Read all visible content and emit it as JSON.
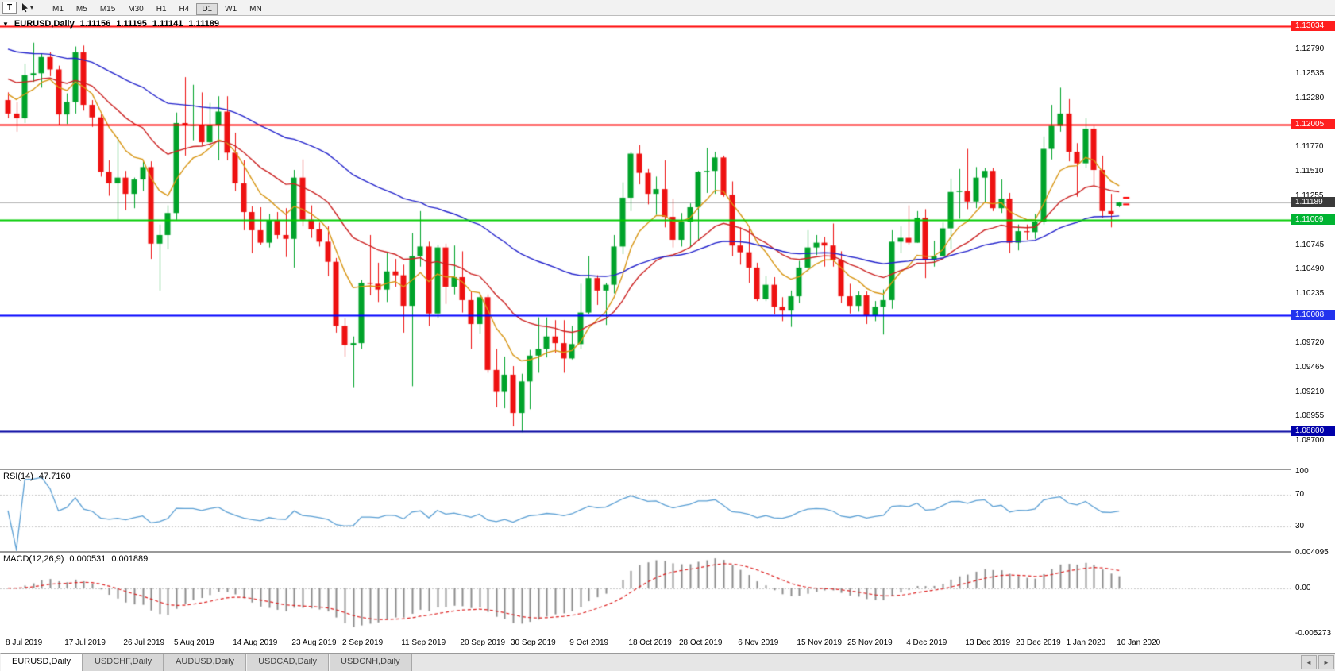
{
  "toolbar": {
    "tool_button": "T",
    "dropdown_icon": "▾",
    "timeframes": [
      "M1",
      "M5",
      "M15",
      "M30",
      "H1",
      "H4",
      "D1",
      "W1",
      "MN"
    ],
    "active_timeframe": "D1"
  },
  "chart_header": {
    "collapse_icon": "▼",
    "symbol": "EURUSD,Daily",
    "open": "1.11156",
    "high": "1.11195",
    "low": "1.11141",
    "close": "1.11189"
  },
  "rsi_panel": {
    "label": "RSI(14)",
    "value": "47.7160"
  },
  "macd_panel": {
    "label": "MACD(12,26,9)",
    "value_main": "0.000531",
    "value_signal": "0.001889"
  },
  "tabs": {
    "items": [
      {
        "label": "EURUSD,Daily",
        "active": true
      },
      {
        "label": "USDCHF,Daily",
        "active": false
      },
      {
        "label": "AUDUSD,Daily",
        "active": false
      },
      {
        "label": "USDCAD,Daily",
        "active": false
      },
      {
        "label": "USDCNH,Daily",
        "active": false
      }
    ],
    "scroll_left": "◄",
    "scroll_right": "►"
  },
  "chart_data": {
    "type": "candlestick",
    "symbol": "EURUSD",
    "timeframe": "Daily",
    "ohlc_current": {
      "open": 1.11156,
      "high": 1.11195,
      "low": 1.11141,
      "close": 1.11189
    },
    "ylim": [
      1.0841,
      1.1314
    ],
    "candle_colors": {
      "up": "#00a32a",
      "down": "#ee1111",
      "bg": "#ffffff"
    },
    "y_ticks": [
      "1.12790",
      "1.12535",
      "1.12280",
      "1.11770",
      "1.11510",
      "1.11255",
      "1.10745",
      "1.10490",
      "1.10235",
      "1.09720",
      "1.09465",
      "1.09210",
      "1.08955",
      "1.08700"
    ],
    "price_badges": [
      {
        "text": "1.13034",
        "price": 1.13034,
        "bg": "#ff1e1e"
      },
      {
        "text": "1.12005",
        "price": 1.12005,
        "bg": "#ff1e1e"
      },
      {
        "text": "1.11189",
        "price": 1.11189,
        "bg": "#3a3a3a"
      },
      {
        "text": "1.11009",
        "price": 1.11009,
        "bg": "#00b432"
      },
      {
        "text": "1.10008",
        "price": 1.10008,
        "bg": "#2233ee"
      },
      {
        "text": "1.08800",
        "price": 1.088,
        "bg": "#0000aa"
      }
    ],
    "hlines": [
      {
        "price": 1.13034,
        "color": "#ff0000"
      },
      {
        "price": 1.12005,
        "color": "#ff0000"
      },
      {
        "price": 1.11009,
        "color": "#00cc00"
      },
      {
        "price": 1.10008,
        "color": "#0000ff"
      },
      {
        "price": 1.088,
        "color": "#0000a0"
      }
    ],
    "moving_averages": [
      {
        "period": 8,
        "color": "#d89614",
        "start": 1.1238
      },
      {
        "period": 20,
        "color": "#cc2222",
        "start": 1.1252
      },
      {
        "period": 50,
        "color": "#2222cc",
        "start": 1.1282
      }
    ],
    "markers": [
      {
        "price": 1.1124,
        "color": "#ff0000"
      },
      {
        "price": 1.1117,
        "color": "#ff0000"
      }
    ],
    "date_labels": [
      {
        "label": "8 Jul 2019",
        "bar": 0
      },
      {
        "label": "17 Jul 2019",
        "bar": 7
      },
      {
        "label": "26 Jul 2019",
        "bar": 14
      },
      {
        "label": "5 Aug 2019",
        "bar": 20
      },
      {
        "label": "14 Aug 2019",
        "bar": 27
      },
      {
        "label": "23 Aug 2019",
        "bar": 34
      },
      {
        "label": "2 Sep 2019",
        "bar": 40
      },
      {
        "label": "11 Sep 2019",
        "bar": 47
      },
      {
        "label": "20 Sep 2019",
        "bar": 54
      },
      {
        "label": "30 Sep 2019",
        "bar": 60
      },
      {
        "label": "9 Oct 2019",
        "bar": 67
      },
      {
        "label": "18 Oct 2019",
        "bar": 74
      },
      {
        "label": "28 Oct 2019",
        "bar": 80
      },
      {
        "label": "6 Nov 2019",
        "bar": 87
      },
      {
        "label": "15 Nov 2019",
        "bar": 94
      },
      {
        "label": "25 Nov 2019",
        "bar": 100
      },
      {
        "label": "4 Dec 2019",
        "bar": 107
      },
      {
        "label": "13 Dec 2019",
        "bar": 114
      },
      {
        "label": "23 Dec 2019",
        "bar": 120
      },
      {
        "label": "1 Jan 2020",
        "bar": 126
      },
      {
        "label": "10 Jan 2020",
        "bar": 132
      }
    ],
    "indicators": {
      "rsi": {
        "period": 14,
        "value_display": "47.7160",
        "color": "#5a9fd4",
        "levels": [
          70,
          30
        ],
        "axis_labels": [
          "100",
          "70",
          "30"
        ]
      },
      "macd": {
        "fast": 12,
        "slow": 26,
        "signal": 9,
        "main_display": "0.000531",
        "signal_display": "0.001889",
        "hist_color": "#8c8c8c",
        "signal_color": "#dd2222",
        "range": [
          -0.005273,
          0.004095
        ],
        "axis_labels": [
          "0.004095",
          "0.00",
          "-0.005273"
        ]
      }
    },
    "candles": [
      [
        1.1226,
        1.1234,
        1.1207,
        1.1212
      ],
      [
        1.1212,
        1.1224,
        1.1193,
        1.1207
      ],
      [
        1.1207,
        1.1264,
        1.1202,
        1.1252
      ],
      [
        1.1252,
        1.1286,
        1.1245,
        1.1254
      ],
      [
        1.1254,
        1.1275,
        1.1239,
        1.1271
      ],
      [
        1.1271,
        1.1276,
        1.1251,
        1.1258
      ],
      [
        1.1258,
        1.1262,
        1.12,
        1.1211
      ],
      [
        1.1211,
        1.1233,
        1.1201,
        1.1224
      ],
      [
        1.1224,
        1.1282,
        1.1212,
        1.1276
      ],
      [
        1.1276,
        1.1283,
        1.1215,
        1.1221
      ],
      [
        1.1221,
        1.1226,
        1.1198,
        1.1208
      ],
      [
        1.1208,
        1.1211,
        1.1146,
        1.1151
      ],
      [
        1.1151,
        1.1163,
        1.1126,
        1.1139
      ],
      [
        1.1139,
        1.1187,
        1.1101,
        1.1145
      ],
      [
        1.1145,
        1.1152,
        1.1111,
        1.1128
      ],
      [
        1.1128,
        1.1145,
        1.1113,
        1.1143
      ],
      [
        1.1143,
        1.1162,
        1.1131,
        1.1156
      ],
      [
        1.1156,
        1.1162,
        1.106,
        1.1076
      ],
      [
        1.1076,
        1.1096,
        1.1027,
        1.1085
      ],
      [
        1.1085,
        1.1116,
        1.107,
        1.1108
      ],
      [
        1.1108,
        1.1213,
        1.1101,
        1.1202
      ],
      [
        1.1202,
        1.125,
        1.1168,
        1.12
      ],
      [
        1.12,
        1.1242,
        1.1184,
        1.12
      ],
      [
        1.12,
        1.1234,
        1.1179,
        1.1182
      ],
      [
        1.1182,
        1.1223,
        1.1178,
        1.12
      ],
      [
        1.12,
        1.123,
        1.1163,
        1.1214
      ],
      [
        1.1214,
        1.123,
        1.1163,
        1.1171
      ],
      [
        1.1171,
        1.1192,
        1.1131,
        1.1139
      ],
      [
        1.1139,
        1.1163,
        1.109,
        1.1109
      ],
      [
        1.1109,
        1.1115,
        1.1066,
        1.109
      ],
      [
        1.109,
        1.1114,
        1.1075,
        1.1077
      ],
      [
        1.1077,
        1.1107,
        1.1072,
        1.11
      ],
      [
        1.11,
        1.1109,
        1.1081,
        1.1085
      ],
      [
        1.1085,
        1.1113,
        1.1062,
        1.1081
      ],
      [
        1.1081,
        1.1153,
        1.1051,
        1.1145
      ],
      [
        1.1145,
        1.1164,
        1.1094,
        1.1101
      ],
      [
        1.1101,
        1.1116,
        1.1082,
        1.1091
      ],
      [
        1.1091,
        1.1098,
        1.1073,
        1.1078
      ],
      [
        1.1078,
        1.1094,
        1.1042,
        1.1057
      ],
      [
        1.1057,
        1.1061,
        1.0983,
        1.099
      ],
      [
        1.099,
        1.0998,
        1.0958,
        1.097
      ],
      [
        1.097,
        1.0979,
        1.0926,
        1.0972
      ],
      [
        1.0972,
        1.1038,
        1.0966,
        1.1035
      ],
      [
        1.1035,
        1.1085,
        1.1022,
        1.1034
      ],
      [
        1.1034,
        1.1056,
        1.1015,
        1.1028
      ],
      [
        1.1028,
        1.1067,
        1.1015,
        1.1047
      ],
      [
        1.1047,
        1.106,
        1.1031,
        1.1043
      ],
      [
        1.1043,
        1.1054,
        1.0983,
        1.1011
      ],
      [
        1.1011,
        1.1087,
        1.0927,
        1.1063
      ],
      [
        1.1063,
        1.111,
        1.1052,
        1.1073
      ],
      [
        1.1073,
        1.1078,
        1.099,
        1.1003
      ],
      [
        1.1003,
        1.1075,
        1.0998,
        1.1072
      ],
      [
        1.1072,
        1.1076,
        1.1013,
        1.1031
      ],
      [
        1.1031,
        1.1074,
        1.1023,
        1.1041
      ],
      [
        1.1041,
        1.1068,
        1.1004,
        1.1017
      ],
      [
        1.1017,
        1.1026,
        1.0966,
        1.0992
      ],
      [
        1.0992,
        1.1024,
        1.0982,
        1.102
      ],
      [
        1.102,
        1.1023,
        1.0941,
        1.0944
      ],
      [
        1.0944,
        1.0966,
        1.0905,
        1.0921
      ],
      [
        1.0921,
        1.0958,
        1.0904,
        1.0939
      ],
      [
        1.0939,
        1.0948,
        1.0885,
        1.0899
      ],
      [
        1.0899,
        1.094,
        1.0879,
        1.0932
      ],
      [
        1.0932,
        1.0965,
        1.0903,
        1.0959
      ],
      [
        1.0959,
        1.0999,
        1.0941,
        1.0966
      ],
      [
        1.0966,
        1.0999,
        1.0957,
        1.0979
      ],
      [
        1.0979,
        1.0996,
        1.0962,
        1.0972
      ],
      [
        1.0972,
        1.0996,
        1.0941,
        1.0956
      ],
      [
        1.0956,
        1.099,
        1.0955,
        1.0971
      ],
      [
        1.0971,
        1.1034,
        1.0966,
        1.1004
      ],
      [
        1.1004,
        1.1063,
        1.1002,
        1.104
      ],
      [
        1.104,
        1.1043,
        1.1012,
        1.1027
      ],
      [
        1.1027,
        1.1035,
        1.0991,
        1.1033
      ],
      [
        1.1033,
        1.1085,
        1.1024,
        1.1073
      ],
      [
        1.1073,
        1.114,
        1.1065,
        1.1124
      ],
      [
        1.1124,
        1.1172,
        1.111,
        1.117
      ],
      [
        1.117,
        1.1179,
        1.1138,
        1.115
      ],
      [
        1.115,
        1.1154,
        1.1117,
        1.1128
      ],
      [
        1.1128,
        1.1146,
        1.1106,
        1.1133
      ],
      [
        1.1133,
        1.1163,
        1.1093,
        1.1104
      ],
      [
        1.1104,
        1.1123,
        1.1072,
        1.108
      ],
      [
        1.108,
        1.1108,
        1.1073,
        1.1099
      ],
      [
        1.1099,
        1.1118,
        1.1073,
        1.1114
      ],
      [
        1.1114,
        1.1152,
        1.108,
        1.1151
      ],
      [
        1.1151,
        1.1176,
        1.1129,
        1.1152
      ],
      [
        1.1152,
        1.1172,
        1.1128,
        1.1166
      ],
      [
        1.1166,
        1.1168,
        1.1125,
        1.1127
      ],
      [
        1.1127,
        1.1141,
        1.1063,
        1.1074
      ],
      [
        1.1074,
        1.1093,
        1.1054,
        1.1067
      ],
      [
        1.1067,
        1.1092,
        1.1035,
        1.1051
      ],
      [
        1.1051,
        1.1056,
        1.1016,
        1.1018
      ],
      [
        1.1018,
        1.1042,
        1.1016,
        1.1033
      ],
      [
        1.1033,
        1.1041,
        1.1002,
        1.101
      ],
      [
        1.101,
        1.102,
        1.0995,
        1.1006
      ],
      [
        1.1006,
        1.1027,
        1.0989,
        1.1021
      ],
      [
        1.1021,
        1.1058,
        1.1014,
        1.1051
      ],
      [
        1.1051,
        1.109,
        1.1047,
        1.1072
      ],
      [
        1.1072,
        1.1085,
        1.1064,
        1.1077
      ],
      [
        1.1077,
        1.1083,
        1.1052,
        1.1074
      ],
      [
        1.1074,
        1.1097,
        1.1052,
        1.1059
      ],
      [
        1.1059,
        1.1068,
        1.1014,
        1.1021
      ],
      [
        1.1021,
        1.1034,
        1.1003,
        1.1011
      ],
      [
        1.1011,
        1.1026,
        1.1005,
        1.1022
      ],
      [
        1.1022,
        1.1026,
        1.0992,
        1.1001
      ],
      [
        1.1001,
        1.1016,
        1.0995,
        1.101
      ],
      [
        1.101,
        1.1028,
        1.0981,
        1.1017
      ],
      [
        1.1017,
        1.109,
        1.1008,
        1.1078
      ],
      [
        1.1078,
        1.1094,
        1.1066,
        1.1082
      ],
      [
        1.1082,
        1.1116,
        1.1075,
        1.1077
      ],
      [
        1.1077,
        1.111,
        1.1077,
        1.1103
      ],
      [
        1.1103,
        1.1112,
        1.104,
        1.1059
      ],
      [
        1.1059,
        1.1079,
        1.1052,
        1.1063
      ],
      [
        1.1063,
        1.1098,
        1.1062,
        1.1092
      ],
      [
        1.1092,
        1.1144,
        1.107,
        1.113
      ],
      [
        1.113,
        1.1154,
        1.1102,
        1.1131
      ],
      [
        1.1131,
        1.1175,
        1.1112,
        1.112
      ],
      [
        1.112,
        1.1156,
        1.1113,
        1.1145
      ],
      [
        1.1145,
        1.1155,
        1.1119,
        1.1152
      ],
      [
        1.1152,
        1.1155,
        1.111,
        1.1113
      ],
      [
        1.1113,
        1.1143,
        1.1108,
        1.1123
      ],
      [
        1.1123,
        1.1129,
        1.1066,
        1.1077
      ],
      [
        1.1077,
        1.1096,
        1.1069,
        1.1089
      ],
      [
        1.1089,
        1.1096,
        1.108,
        1.1088
      ],
      [
        1.1088,
        1.1107,
        1.1081,
        1.1099
      ],
      [
        1.1099,
        1.1188,
        1.1096,
        1.1175
      ],
      [
        1.1175,
        1.1221,
        1.1164,
        1.1199
      ],
      [
        1.1199,
        1.1239,
        1.1193,
        1.1212
      ],
      [
        1.1212,
        1.1227,
        1.1162,
        1.1172
      ],
      [
        1.1172,
        1.1181,
        1.1125,
        1.116
      ],
      [
        1.116,
        1.1207,
        1.1155,
        1.1196
      ],
      [
        1.1196,
        1.1199,
        1.1135,
        1.1153
      ],
      [
        1.1153,
        1.1168,
        1.1103,
        1.111
      ],
      [
        1.111,
        1.1128,
        1.1093,
        1.1107
      ],
      [
        1.11156,
        1.11195,
        1.11141,
        1.11189
      ]
    ]
  }
}
